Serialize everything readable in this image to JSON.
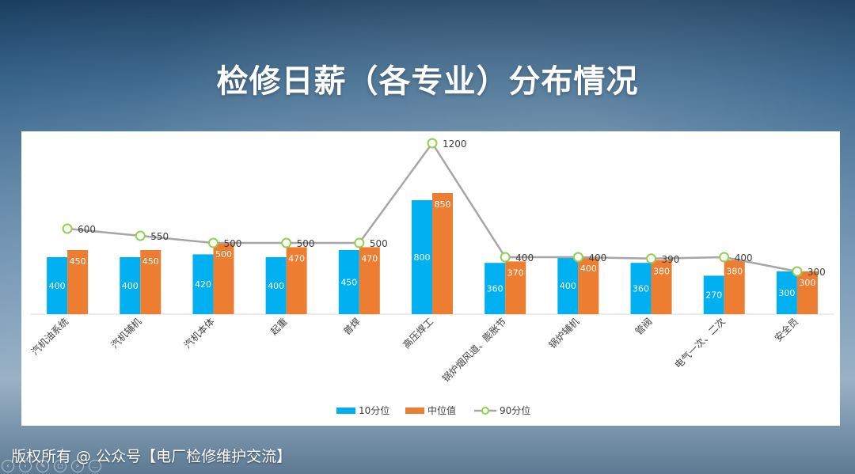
{
  "slide": {
    "title": "检修日薪（各专业）分布情况",
    "copyright": "版权所有 @ 公众号【电厂检修维护交流】"
  },
  "colors": {
    "p10": "#00b0f0",
    "median": "#ed7d31",
    "p90_line": "#a6a6a6",
    "p90_marker": "#92d050"
  },
  "chart_data": {
    "type": "bar",
    "title": "",
    "categories": [
      "汽机油系统",
      "汽机辅机",
      "汽机本体",
      "起重",
      "普焊",
      "高压焊工",
      "锅炉烟风道、膨胀节",
      "锅炉辅机",
      "管阀",
      "电气一次、二次",
      "安全员"
    ],
    "series": [
      {
        "name": "10分位",
        "kind": "bar",
        "values": [
          400,
          400,
          420,
          400,
          450,
          800,
          360,
          400,
          360,
          270,
          300
        ]
      },
      {
        "name": "中位值",
        "kind": "bar",
        "values": [
          450,
          450,
          500,
          470,
          470,
          850,
          370,
          400,
          380,
          380,
          300
        ]
      },
      {
        "name": "90分位",
        "kind": "line",
        "values": [
          600,
          550,
          500,
          500,
          500,
          1200,
          400,
          400,
          390,
          400,
          300
        ]
      }
    ],
    "legend": [
      "10分位",
      "中位值",
      "90分位"
    ],
    "legend_position": "bottom",
    "ylim": [
      0,
      1300
    ],
    "grid": false
  },
  "toolbar": {
    "icons": [
      "prev-icon",
      "next-icon",
      "pen-icon",
      "copy-icon",
      "zoom-icon",
      "more-icon"
    ],
    "glyphs": [
      "‹",
      "›",
      "✎",
      "▢",
      "⌕",
      "…"
    ]
  }
}
